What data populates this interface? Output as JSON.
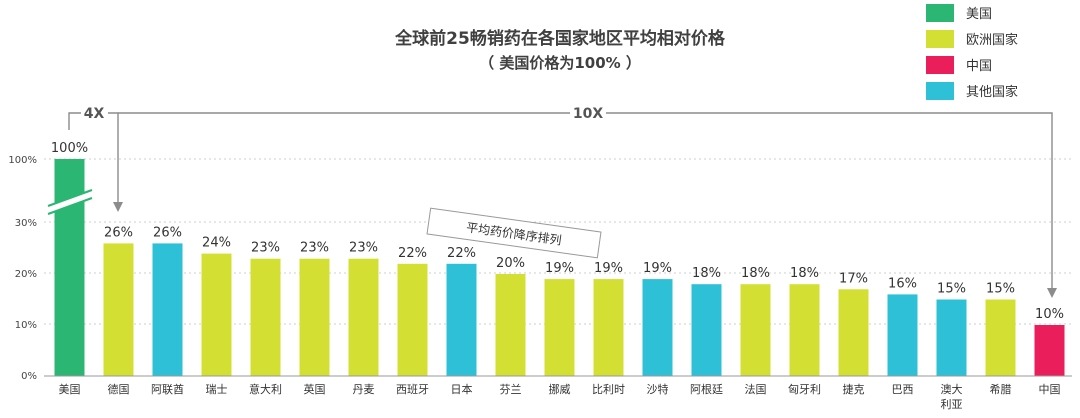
{
  "chart_data": {
    "type": "bar",
    "title": "全球前25畅销药在各国家地区平均相对价格",
    "subtitle": "（ 美国价格为100% ）",
    "categories": [
      "美国",
      "德国",
      "阿联酋",
      "瑞士",
      "意大利",
      "英国",
      "丹麦",
      "西班牙",
      "日本",
      "芬兰",
      "挪威",
      "比利时",
      "沙特",
      "阿根廷",
      "法国",
      "匈牙利",
      "捷克",
      "巴西",
      "澳大利亚",
      "希腊",
      "中国"
    ],
    "category_lines": [
      [
        "美国"
      ],
      [
        "德国"
      ],
      [
        "阿联酋"
      ],
      [
        "瑞士"
      ],
      [
        "意大利"
      ],
      [
        "英国"
      ],
      [
        "丹麦"
      ],
      [
        "西班牙"
      ],
      [
        "日本"
      ],
      [
        "芬兰"
      ],
      [
        "挪威"
      ],
      [
        "比利时"
      ],
      [
        "沙特"
      ],
      [
        "阿根廷"
      ],
      [
        "法国"
      ],
      [
        "匈牙利"
      ],
      [
        "捷克"
      ],
      [
        "巴西"
      ],
      [
        "澳大",
        "利亚"
      ],
      [
        "希腊"
      ],
      [
        "中国"
      ]
    ],
    "values": [
      100,
      26,
      26,
      24,
      23,
      23,
      23,
      22,
      22,
      20,
      19,
      19,
      19,
      18,
      18,
      18,
      17,
      16,
      15,
      15,
      10
    ],
    "value_labels": [
      "100%",
      "26%",
      "26%",
      "24%",
      "23%",
      "23%",
      "23%",
      "22%",
      "22%",
      "20%",
      "19%",
      "19%",
      "19%",
      "18%",
      "18%",
      "18%",
      "17%",
      "16%",
      "15%",
      "15%",
      "10%"
    ],
    "groups": [
      "us",
      "eu",
      "other",
      "eu",
      "eu",
      "eu",
      "eu",
      "eu",
      "other",
      "eu",
      "eu",
      "eu",
      "other",
      "other",
      "eu",
      "eu",
      "eu",
      "other",
      "other",
      "eu",
      "cn"
    ],
    "legend": [
      {
        "key": "us",
        "label": "美国"
      },
      {
        "key": "eu",
        "label": "欧洲国家"
      },
      {
        "key": "cn",
        "label": "中国"
      },
      {
        "key": "other",
        "label": "其他国家"
      }
    ],
    "colors": {
      "us": "#2bb673",
      "eu": "#d4df33",
      "cn": "#e91e5a",
      "other": "#2dc0d6"
    },
    "yticks": [
      "0%",
      "10%",
      "20%",
      "30%",
      "100%"
    ],
    "ylim": [
      0,
      100
    ],
    "axis_break": true,
    "legend_position": "top-right",
    "grid": true,
    "annotations": {
      "ratio_us_germany": "4X",
      "ratio_us_china": "10X",
      "sort_note": "平均药价降序排列"
    }
  }
}
